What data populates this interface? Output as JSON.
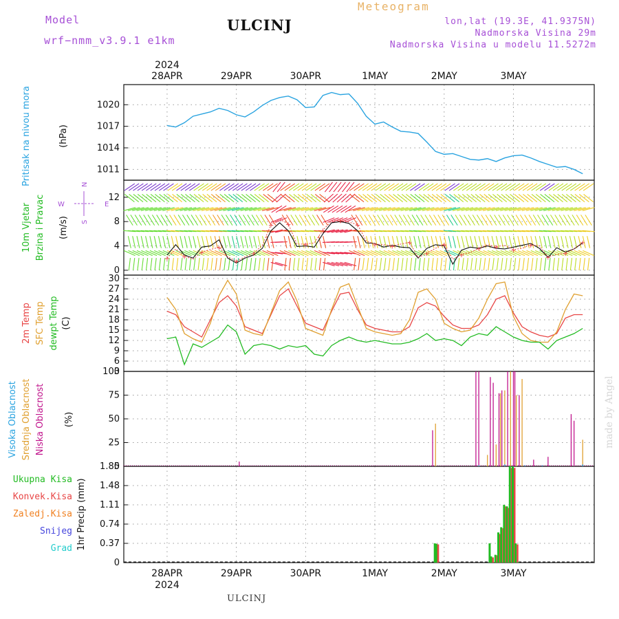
{
  "header": {
    "model_label": "Model",
    "model_name": "wrf−nmm_v3.9.1  e1km",
    "station": "ULCINJ",
    "title": "Meteogram",
    "location": "lon,lat (19.3E, 41.9375N)",
    "altitude": "Nadmorska Visina 29m",
    "model_altitude": "Nadmorska Visina u modelu 11.5272m"
  },
  "footer": {
    "station": "ULCINJ",
    "credit": "made by Angel"
  },
  "colors": {
    "pressure": "#29a3e0",
    "wind_label": "#22bb22",
    "temp_2m": "#e84545",
    "temp_sfc": "#e0a030",
    "temp_dew": "#22bb22",
    "cloud_high": "#29a3e0",
    "cloud_mid": "#e0a030",
    "cloud_low": "#c0148c",
    "rain_total": "#22bb22",
    "rain_conv": "#e84545",
    "rain_frozen": "#f08020",
    "snow": "#4444dd",
    "hail": "#22cccc",
    "compass": "#a64fd6"
  },
  "axes": {
    "year": "2024",
    "dates": [
      "28APR",
      "29APR",
      "30APR",
      "1MAY",
      "2MAY",
      "3MAY"
    ]
  },
  "chart_data": [
    {
      "type": "line",
      "name": "pressure",
      "ylabel": [
        "Pritisak na nivou mora",
        "(hPa)"
      ],
      "ylim": [
        1009.5,
        1022.8
      ],
      "yticks": [
        1011,
        1014,
        1017,
        1020
      ],
      "x_hours": [
        0,
        3,
        6,
        9,
        12,
        15,
        18,
        21,
        24,
        27,
        30,
        33,
        36,
        39,
        42,
        45,
        48,
        51,
        54,
        57,
        60,
        63,
        66,
        69,
        72,
        75,
        78,
        81,
        84,
        87,
        90,
        93,
        96,
        99,
        102,
        105,
        108,
        111,
        114,
        117,
        120,
        123,
        126,
        129,
        132,
        135,
        138,
        141,
        144
      ],
      "values": [
        1017.1,
        1016.9,
        1017.5,
        1018.4,
        1018.7,
        1019.0,
        1019.5,
        1019.2,
        1018.6,
        1018.3,
        1019.0,
        1019.9,
        1020.6,
        1021.0,
        1021.2,
        1020.7,
        1019.6,
        1019.7,
        1021.3,
        1021.7,
        1021.4,
        1021.5,
        1020.2,
        1018.4,
        1017.3,
        1017.6,
        1016.9,
        1016.3,
        1016.2,
        1016.0,
        1014.8,
        1013.5,
        1013.1,
        1013.2,
        1012.8,
        1012.4,
        1012.3,
        1012.5,
        1012.1,
        1012.6,
        1012.9,
        1013.0,
        1012.6,
        1012.1,
        1011.7,
        1011.3,
        1011.4,
        1011.0,
        1010.4
      ]
    },
    {
      "type": "line",
      "name": "wind",
      "ylabel": [
        "10m Vjetar",
        "Brzina i Pravac",
        "(m/s)"
      ],
      "compass": [
        "N",
        "E",
        "S",
        "W"
      ],
      "ylim": [
        -0.8,
        14.8
      ],
      "yticks": [
        0,
        4,
        8,
        12
      ],
      "x_hours": [
        0,
        3,
        6,
        9,
        12,
        15,
        18,
        21,
        24,
        27,
        30,
        33,
        36,
        39,
        42,
        45,
        48,
        51,
        54,
        57,
        60,
        63,
        66,
        69,
        72,
        75,
        78,
        81,
        84,
        87,
        90,
        93,
        96,
        99,
        102,
        105,
        108,
        111,
        114,
        117,
        120,
        123,
        126,
        129,
        132,
        135,
        138,
        141,
        144
      ],
      "series": [
        {
          "name": "speed",
          "values": [
            2.5,
            4.2,
            2.5,
            2.0,
            3.8,
            4.0,
            5.0,
            2.0,
            1.2,
            2.0,
            2.5,
            3.6,
            6.5,
            7.8,
            6.5,
            3.9,
            4.0,
            3.8,
            6.0,
            7.8,
            8.0,
            7.7,
            6.5,
            4.5,
            4.4,
            3.8,
            4.1,
            3.8,
            3.7,
            2.0,
            3.6,
            4.2,
            4.0,
            1.0,
            3.3,
            3.8,
            3.6,
            4.0,
            3.6,
            3.5,
            3.8,
            4.1,
            4.4,
            3.6,
            2.1,
            3.7,
            3.0,
            3.5,
            4.5
          ]
        },
        {
          "name": "gust",
          "values": [
            2.0,
            3.5,
            2.3,
            1.8,
            3.0,
            3.4,
            3.8,
            2.2,
            1.5,
            2.2,
            2.8,
            4.1,
            7.5,
            8.4,
            7.6,
            4.3,
            4.3,
            4.5,
            6.6,
            8.1,
            8.2,
            7.9,
            7.5,
            4.8,
            4.3,
            4.2,
            4.0,
            4.3,
            4.6,
            2.1,
            2.8,
            3.6,
            4.3,
            1.8,
            2.6,
            2.9,
            3.6,
            4.2,
            3.9,
            4.1,
            3.4,
            3.6,
            4.2,
            4.0,
            2.2,
            2.6,
            2.8,
            3.5,
            4.6
          ]
        }
      ]
    },
    {
      "type": "line",
      "name": "temperature",
      "ylabel": [
        "2m Temp",
        "SFC Temp",
        "dewpt Temp",
        "(C)"
      ],
      "ylim": [
        3,
        31
      ],
      "yticks": [
        3,
        6,
        9,
        12,
        15,
        18,
        21,
        24,
        27,
        30
      ],
      "x_hours": [
        0,
        3,
        6,
        9,
        12,
        15,
        18,
        21,
        24,
        27,
        30,
        33,
        36,
        39,
        42,
        45,
        48,
        51,
        54,
        57,
        60,
        63,
        66,
        69,
        72,
        75,
        78,
        81,
        84,
        87,
        90,
        93,
        96,
        99,
        102,
        105,
        108,
        111,
        114,
        117,
        120,
        123,
        126,
        129,
        132,
        135,
        138,
        141,
        144
      ],
      "series": [
        {
          "name": "2m",
          "values": [
            20.5,
            19.5,
            16.0,
            14.5,
            13.0,
            18.0,
            23.0,
            25.0,
            22.0,
            16.0,
            15.0,
            14.0,
            19.5,
            25.0,
            27.0,
            22.0,
            17.0,
            16.0,
            15.0,
            20.5,
            25.5,
            26.0,
            21.0,
            16.5,
            15.5,
            15.0,
            14.5,
            14.5,
            16.0,
            21.5,
            23.0,
            22.0,
            19.0,
            16.5,
            15.5,
            15.5,
            16.5,
            19.5,
            24.0,
            25.0,
            20.0,
            16.0,
            14.5,
            13.5,
            13.0,
            14.0,
            18.5,
            19.5,
            19.5
          ]
        },
        {
          "name": "SFC",
          "values": [
            24.5,
            21.0,
            14.0,
            12.5,
            11.5,
            17.0,
            25.0,
            29.5,
            25.5,
            15.0,
            14.0,
            13.5,
            20.0,
            26.5,
            29.0,
            23.5,
            15.5,
            14.5,
            13.5,
            21.0,
            27.5,
            28.5,
            22.0,
            15.5,
            14.5,
            14.0,
            13.5,
            14.0,
            18.0,
            26.0,
            27.0,
            24.0,
            17.0,
            15.5,
            14.5,
            15.0,
            18.5,
            24.0,
            28.5,
            29.0,
            19.0,
            14.0,
            12.0,
            11.5,
            11.5,
            14.5,
            21.0,
            25.5,
            25.0
          ]
        },
        {
          "name": "dewpt",
          "values": [
            12.5,
            13.0,
            5.0,
            11.0,
            10.0,
            11.5,
            13.0,
            16.5,
            14.5,
            8.0,
            10.5,
            11.0,
            10.5,
            9.5,
            10.5,
            10.0,
            10.5,
            8.0,
            7.5,
            10.5,
            12.0,
            13.0,
            12.0,
            11.5,
            12.0,
            11.5,
            11.0,
            11.0,
            11.5,
            12.5,
            14.0,
            12.0,
            12.5,
            12.0,
            10.5,
            13.0,
            14.0,
            13.5,
            16.0,
            14.5,
            13.0,
            12.0,
            11.5,
            11.5,
            9.5,
            12.0,
            13.0,
            14.0,
            15.5
          ]
        }
      ]
    },
    {
      "type": "bar",
      "name": "cloud",
      "ylabel": [
        "Visoka Oblacnost",
        "Srednja Oblacnost",
        "Niska Oblacnost",
        "(%)"
      ],
      "ylim": [
        0,
        100
      ],
      "yticks": [
        0,
        25,
        50,
        75,
        100
      ],
      "series": [
        {
          "name": "low",
          "x_hours": [
            25,
            92,
            107,
            108,
            112,
            113,
            115,
            116,
            118,
            120,
            120.5,
            122,
            127,
            132,
            140,
            141
          ],
          "values": [
            5,
            38,
            100,
            100,
            94,
            88,
            77,
            80,
            100,
            100,
            100,
            75,
            7,
            10,
            55,
            48
          ]
        },
        {
          "name": "mid",
          "x_hours": [
            93,
            111,
            114,
            115.5,
            117,
            119,
            121,
            123,
            144
          ],
          "values": [
            45,
            12,
            23,
            77,
            80,
            100,
            75,
            92,
            28
          ]
        },
        {
          "name": "high",
          "x_hours": [
            108,
            117,
            124,
            130,
            144
          ],
          "values": [
            1,
            2,
            1,
            1,
            2
          ]
        }
      ]
    },
    {
      "type": "bar",
      "name": "precipitation",
      "ylabel": [
        "1hr Precip (mm)"
      ],
      "legend": [
        "Ukupna  Kisa",
        "Konvek.Kisa",
        "Zaledj.Kisa",
        "Snijeg",
        "Grad"
      ],
      "ylim": [
        0,
        1.85
      ],
      "yticks": [
        0,
        0.37,
        0.74,
        1.11,
        1.48,
        1.85
      ],
      "x_hours": [
        93,
        93.5,
        112,
        112.5,
        114,
        115,
        116,
        117,
        118,
        119,
        120,
        121,
        122
      ],
      "series": [
        {
          "name": "total",
          "values": [
            0.37,
            0.36,
            0.37,
            0.12,
            0.15,
            0.58,
            0.68,
            1.11,
            1.08,
            1.85,
            1.85,
            0.37,
            0.01
          ]
        },
        {
          "name": "convective",
          "values": [
            0.36,
            0.35,
            0.0,
            0.1,
            0.14,
            0.55,
            0.66,
            1.08,
            1.05,
            1.82,
            1.82,
            0.35,
            0.0
          ]
        }
      ]
    }
  ]
}
